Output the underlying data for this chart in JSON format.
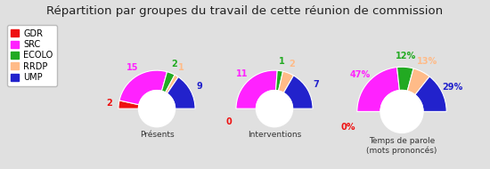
{
  "title": "Répartition par groupes du travail de cette réunion de commission",
  "title_fontsize": 9.5,
  "background_color": "#e0e0e0",
  "groups": [
    "GDR",
    "SRC",
    "ECOLO",
    "RRDP",
    "UMP"
  ],
  "colors": [
    "#ee1111",
    "#ff22ff",
    "#22aa22",
    "#ffbb88",
    "#2222cc"
  ],
  "charts": [
    {
      "label": "Présents",
      "values": [
        2,
        15,
        2,
        1,
        9
      ],
      "label_values": [
        "2",
        "15",
        "2",
        "1",
        "9"
      ]
    },
    {
      "label": "Interventions",
      "values": [
        0,
        11,
        1,
        2,
        7
      ],
      "label_values": [
        "0",
        "11",
        "1",
        "2",
        "7"
      ]
    },
    {
      "label": "Temps de parole\n(mots prononcés)",
      "values": [
        0,
        47,
        12,
        13,
        29
      ],
      "label_values": [
        "0%",
        "47%",
        "12%",
        "13%",
        "29%"
      ]
    }
  ]
}
